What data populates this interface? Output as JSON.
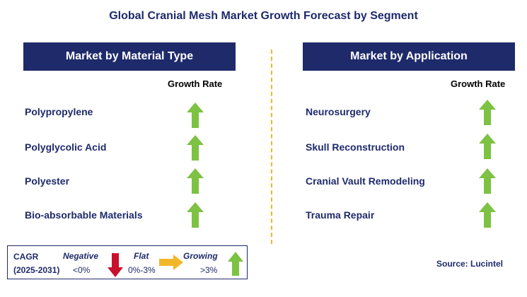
{
  "title": "Global Cranial Mesh Market Growth Forecast by Segment",
  "left_panel": {
    "header": "Market by Material Type",
    "growth_label": "Growth Rate",
    "rows": [
      {
        "label": "Polypropylene",
        "trend": "growing"
      },
      {
        "label": "Polyglycolic Acid",
        "trend": "growing"
      },
      {
        "label": "Polyester",
        "trend": "growing"
      },
      {
        "label": "Bio-absorbable Materials",
        "trend": "growing"
      }
    ]
  },
  "right_panel": {
    "header": "Market by Application",
    "growth_label": "Growth Rate",
    "rows": [
      {
        "label": "Neurosurgery",
        "trend": "growing"
      },
      {
        "label": "Skull Reconstruction",
        "trend": "growing"
      },
      {
        "label": "Cranial Vault Remodeling",
        "trend": "growing"
      },
      {
        "label": "Trauma Repair",
        "trend": "growing"
      }
    ]
  },
  "legend": {
    "cagr_label": "CAGR",
    "period": "(2025-2031)",
    "negative_label": "Negative",
    "negative_value": "<0%",
    "flat_label": "Flat",
    "flat_value": "0%-3%",
    "growing_label": "Growing",
    "growing_value": ">3%"
  },
  "source": "Source: Lucintel",
  "colors": {
    "navy": "#1f2a6b",
    "growing": "#7dc242",
    "negative": "#c8102e",
    "flat": "#f2b62b"
  },
  "icons": {
    "growing": "arrow-up-icon",
    "negative": "arrow-down-icon",
    "flat": "arrow-right-icon"
  }
}
